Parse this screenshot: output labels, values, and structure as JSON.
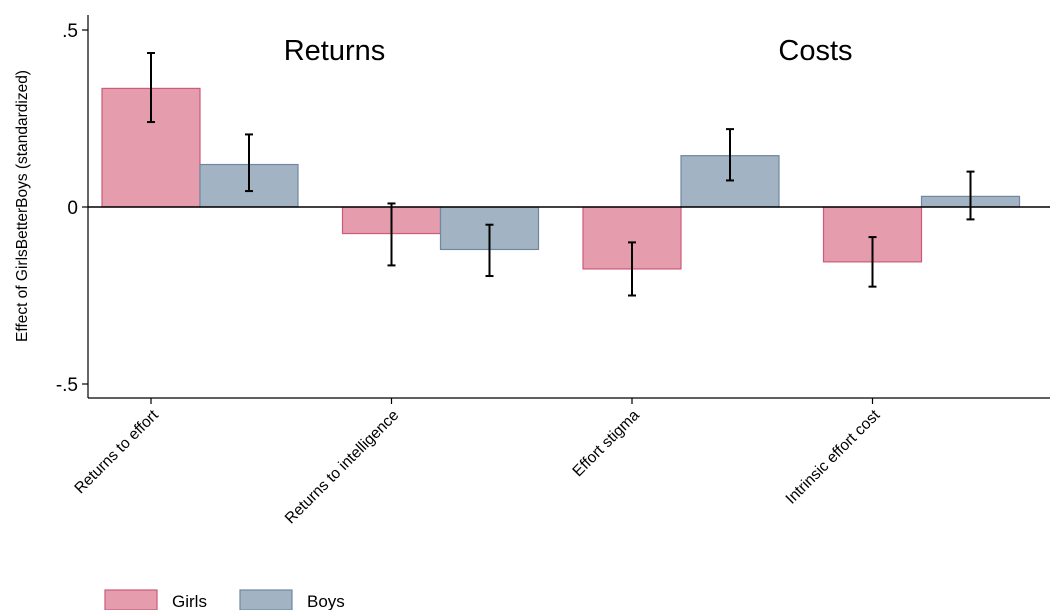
{
  "chart_data": {
    "type": "bar",
    "title": "",
    "xlabel": "",
    "ylabel": "Effect of GirlsBetterBoys (standardized)",
    "ylim": [
      -0.5,
      0.5
    ],
    "yticks": [
      {
        "value": 0.5,
        "label": ".5"
      },
      {
        "value": 0,
        "label": "0"
      },
      {
        "value": -0.5,
        "label": "-.5"
      }
    ],
    "categories": [
      "Returns to effort",
      "Returns to intelligence",
      "Effort stigma",
      "Intrinsic effort cost"
    ],
    "series": [
      {
        "name": "Girls",
        "color": "#e59cad",
        "values": [
          0.335,
          -0.075,
          -0.175,
          -0.155
        ],
        "ci_low": [
          0.24,
          -0.165,
          -0.25,
          -0.225
        ],
        "ci_high": [
          0.435,
          0.01,
          -0.1,
          -0.085
        ]
      },
      {
        "name": "Boys",
        "color": "#a2b3c4",
        "values": [
          0.12,
          -0.12,
          0.145,
          0.03
        ],
        "ci_low": [
          0.045,
          -0.195,
          0.075,
          -0.035
        ],
        "ci_high": [
          0.205,
          -0.05,
          0.22,
          0.1
        ]
      }
    ],
    "group_labels": [
      "Returns",
      "Costs"
    ],
    "grid": false,
    "legend_position": "bottom-left"
  }
}
